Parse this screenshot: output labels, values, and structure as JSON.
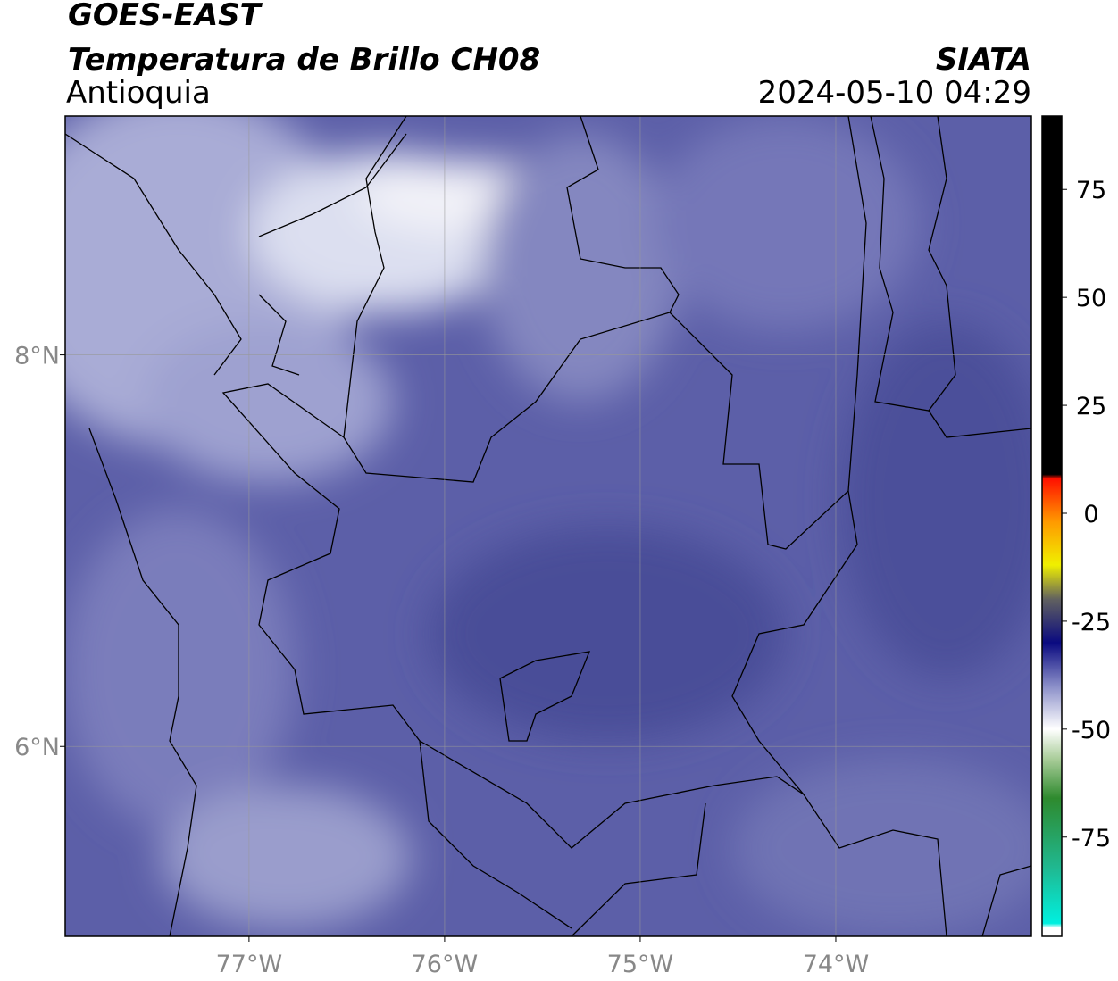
{
  "header": {
    "title": "GOES-EAST",
    "subtitle": "Temperatura de Brillo CH08",
    "region": "Antioquia",
    "source": "SIATA",
    "datetime": "2024-05-10 04:29"
  },
  "map": {
    "xlim": [
      -77.94,
      -73.0
    ],
    "ylim": [
      5.03,
      9.22
    ],
    "xticks": [
      {
        "value": -77,
        "label": "77°W"
      },
      {
        "value": -76,
        "label": "76°W"
      },
      {
        "value": -75,
        "label": "75°W"
      },
      {
        "value": -74,
        "label": "74°W"
      }
    ],
    "yticks": [
      {
        "value": 6,
        "label": "6°N"
      },
      {
        "value": 8,
        "label": "8°N"
      }
    ],
    "grid": true
  },
  "colorbar": {
    "lim": [
      -98,
      92
    ],
    "ticks": [
      75,
      50,
      25,
      0,
      -25,
      -50,
      -75
    ],
    "stops": [
      {
        "value": -98,
        "color": "#ffffff"
      },
      {
        "value": -96,
        "color": "#ffffff"
      },
      {
        "value": -95,
        "color": "#00f0e0"
      },
      {
        "value": -82,
        "color": "#20b890"
      },
      {
        "value": -66,
        "color": "#2e8a2e"
      },
      {
        "value": -57,
        "color": "#a8cc98"
      },
      {
        "value": -50,
        "color": "#ffffff"
      },
      {
        "value": -40,
        "color": "#8a8ec8"
      },
      {
        "value": -30,
        "color": "#0a0a80"
      },
      {
        "value": -20,
        "color": "#606060"
      },
      {
        "value": -12,
        "color": "#f0f000"
      },
      {
        "value": -2,
        "color": "#ff9a00"
      },
      {
        "value": 8,
        "color": "#ff1000"
      },
      {
        "value": 9,
        "color": "#000000"
      },
      {
        "value": 92,
        "color": "#000000"
      }
    ]
  }
}
